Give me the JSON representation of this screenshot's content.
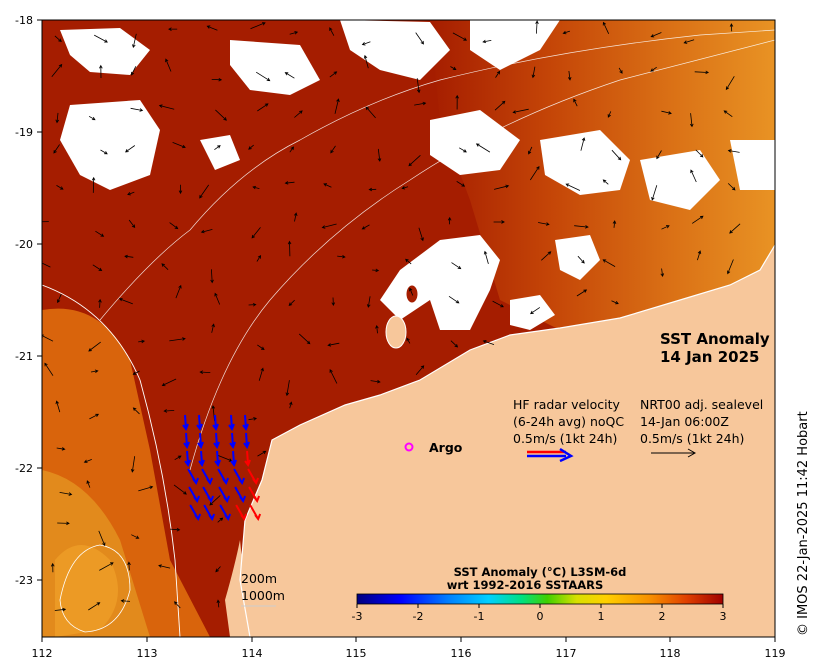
{
  "map": {
    "title_line1": "SST Anomaly",
    "title_line2": "14 Jan 2025",
    "x_ticks": [
      "112",
      "113",
      "114",
      "115",
      "116",
      "117",
      "118",
      "119"
    ],
    "y_ticks": [
      "-18",
      "-19",
      "-20",
      "-21",
      "-22",
      "-23"
    ],
    "argo_label": "Argo",
    "hf_radar_line1": "HF radar velocity",
    "hf_radar_line2": "(6-24h avg) noQC",
    "hf_radar_line3": "0.5m/s (1kt 24h)",
    "sealevel_line1": "NRT00 adj. sealevel",
    "sealevel_line2": "14-Jan 06:00Z",
    "sealevel_line3": "0.5m/s (1kt 24h)",
    "isobath_200": "200m",
    "isobath_1000": "1000m",
    "colorbar_title_line1": "SST Anomaly (°C) L3SM-6d",
    "colorbar_title_line2": "wrt 1992-2016 SSTAARS",
    "colorbar_ticks": [
      "-3",
      "-2",
      "-1",
      "0",
      "1",
      "2",
      "3"
    ],
    "credit": "© IMOS 22-Jan-2025 11:42 Hobart"
  },
  "colors": {
    "anomaly_high": "#a51d00",
    "anomaly_mid": "#d9640c",
    "anomaly_warm": "#f0a020",
    "land": "#f7c79b",
    "argo_marker": "#ff00ff",
    "hf_radar_arrow": "#0000ff",
    "hf_radar_arrow_alt": "#ff0000"
  }
}
